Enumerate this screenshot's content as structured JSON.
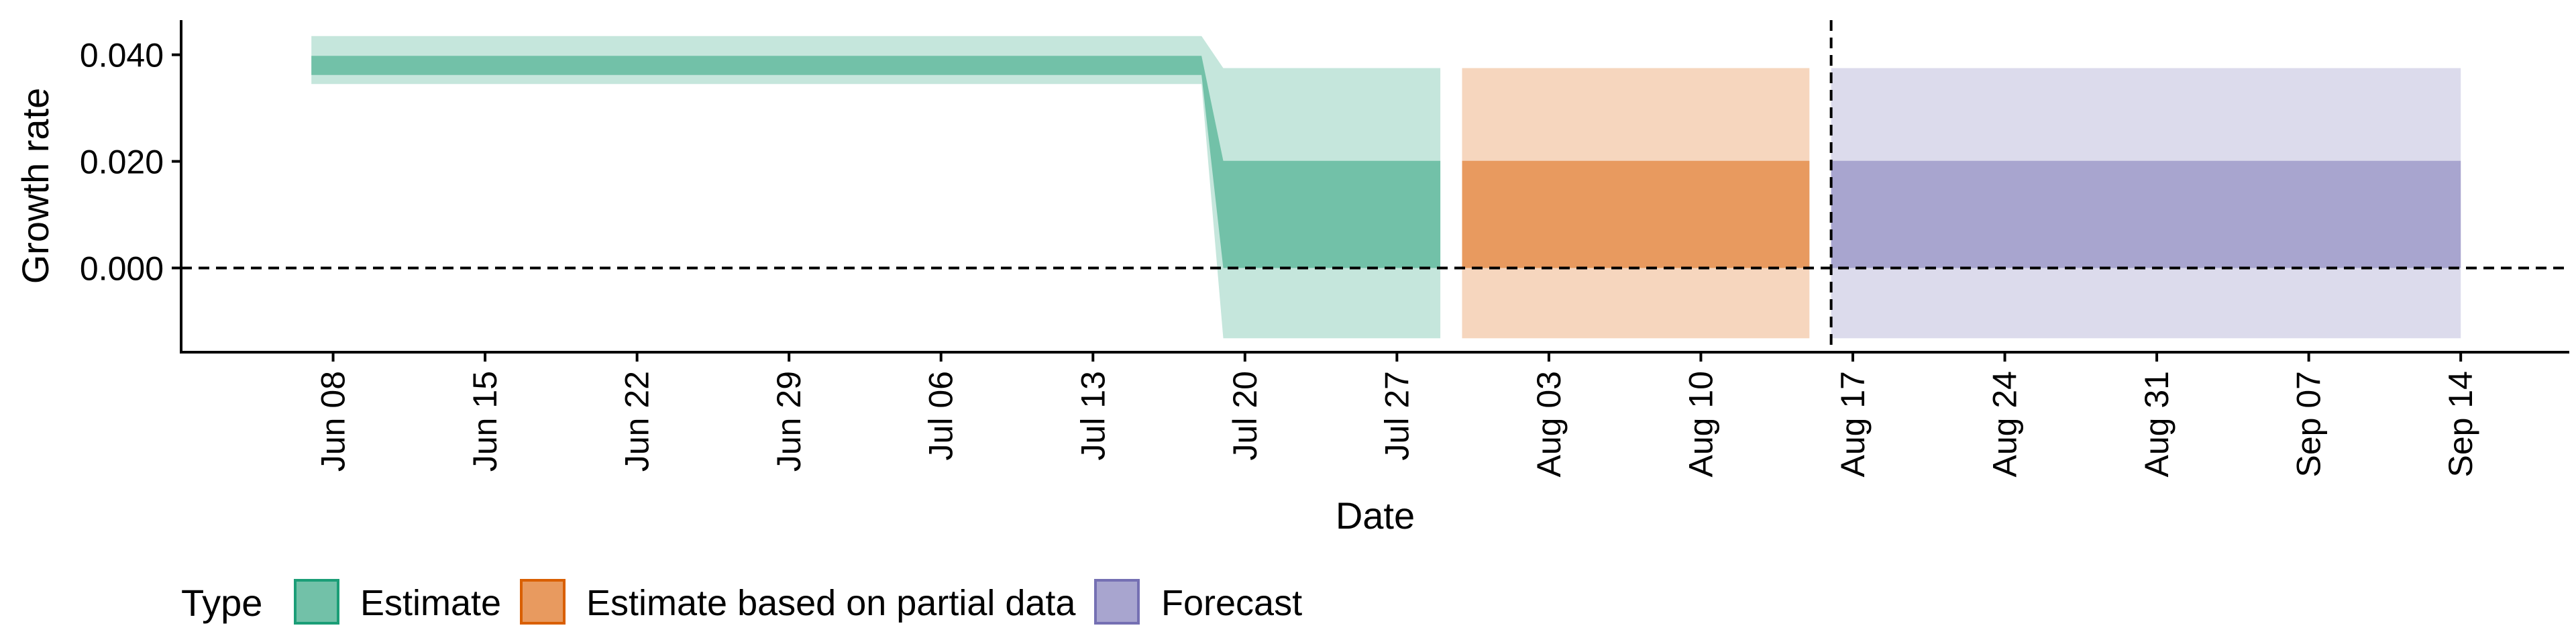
{
  "chart_data": {
    "type": "area",
    "xlabel": "Date",
    "ylabel": "Growth rate",
    "ylim": [
      -0.0158,
      0.0465
    ],
    "xlim": [
      "2020-06-01",
      "2020-09-19"
    ],
    "x_ticks": [
      "2020-06-08",
      "2020-06-15",
      "2020-06-22",
      "2020-06-29",
      "2020-07-06",
      "2020-07-13",
      "2020-07-20",
      "2020-07-27",
      "2020-08-03",
      "2020-08-10",
      "2020-08-17",
      "2020-08-24",
      "2020-08-31",
      "2020-09-07",
      "2020-09-14"
    ],
    "x_tick_labels": [
      "Jun 08",
      "Jun 15",
      "Jun 22",
      "Jun 29",
      "Jul 06",
      "Jul 13",
      "Jul 20",
      "Jul 27",
      "Aug 03",
      "Aug 10",
      "Aug 17",
      "Aug 24",
      "Aug 31",
      "Sep 07",
      "Sep 14"
    ],
    "y_ticks": [
      0.0,
      0.02,
      0.04
    ],
    "y_tick_labels": [
      "0.000",
      "0.020",
      "0.040"
    ],
    "hline": 0.0,
    "vline": "2020-08-16",
    "grid": false,
    "legend": {
      "title": "Type",
      "placement": "bottom-left",
      "entries": [
        {
          "label": "Estimate",
          "fill": "#72c1a8",
          "stroke": "#1b9e77"
        },
        {
          "label": "Estimate based on partial data",
          "fill": "#e89a5f",
          "stroke": "#d95f02"
        },
        {
          "label": "Forecast",
          "fill": "#a8a5cf",
          "stroke": "#7570b3"
        }
      ]
    },
    "series": [
      {
        "type_index": 0,
        "outer_color": "#c5e6dc",
        "inner_color": "#72c1a8",
        "points": [
          {
            "x": "2020-06-07",
            "lo90": 0.0345,
            "lo50": 0.0362,
            "hi50": 0.0398,
            "hi90": 0.0435
          },
          {
            "x": "2020-07-18",
            "lo90": 0.0345,
            "lo50": 0.0362,
            "hi50": 0.0398,
            "hi90": 0.0435
          },
          {
            "x": "2020-07-19",
            "lo90": -0.0132,
            "lo50": 0.0,
            "hi50": 0.0201,
            "hi90": 0.0375
          },
          {
            "x": "2020-07-29",
            "lo90": -0.0132,
            "lo50": 0.0,
            "hi50": 0.0201,
            "hi90": 0.0375
          }
        ]
      },
      {
        "type_index": 1,
        "outer_color": "#f6d6be",
        "inner_color": "#e89a5f",
        "points": [
          {
            "x": "2020-07-30",
            "lo90": -0.0132,
            "lo50": 0.0,
            "hi50": 0.0201,
            "hi90": 0.0375
          },
          {
            "x": "2020-08-15",
            "lo90": -0.0132,
            "lo50": 0.0,
            "hi50": 0.0201,
            "hi90": 0.0375
          }
        ]
      },
      {
        "type_index": 2,
        "outer_color": "#dcdbec",
        "inner_color": "#a8a5cf",
        "points": [
          {
            "x": "2020-08-16",
            "lo90": -0.0132,
            "lo50": 0.0,
            "hi50": 0.0201,
            "hi90": 0.0375
          },
          {
            "x": "2020-09-14",
            "lo90": -0.0132,
            "lo50": 0.0,
            "hi50": 0.0201,
            "hi90": 0.0375
          }
        ]
      }
    ]
  }
}
